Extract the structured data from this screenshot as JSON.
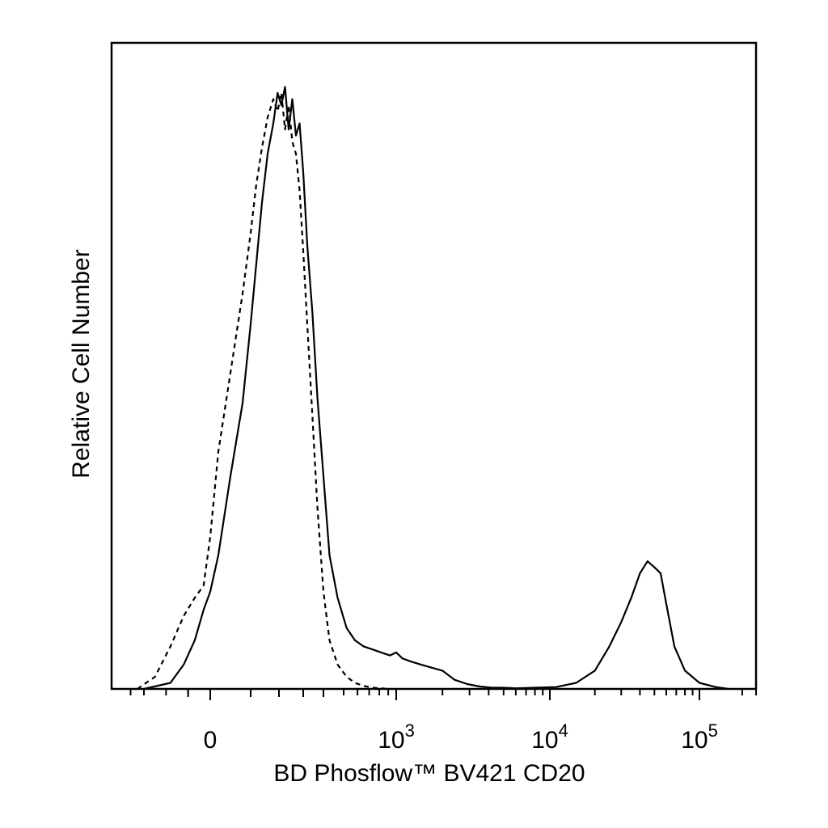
{
  "chart_data": {
    "type": "line",
    "title": "",
    "xlabel": "BD Phosflow™ BV421 CD20",
    "ylabel": "Relative Cell Number",
    "x_scale": "biexponential",
    "x_ticks": [
      {
        "value": 0,
        "base": "0",
        "exp": ""
      },
      {
        "value": 1000,
        "base": "10",
        "exp": "3"
      },
      {
        "value": 10000,
        "base": "10",
        "exp": "4"
      },
      {
        "value": 100000,
        "base": "10",
        "exp": "5"
      }
    ],
    "xlim": [
      -500,
      250000
    ],
    "ylim": [
      0,
      100
    ],
    "grid": false,
    "legend": "none",
    "series": [
      {
        "style": "solid",
        "color": "#000000",
        "x": [
          -300,
          -180,
          -120,
          -70,
          -30,
          0,
          20,
          50,
          80,
          100,
          120,
          140,
          160,
          180,
          195,
          210,
          225,
          240,
          255,
          270,
          285,
          300,
          320,
          345,
          370,
          400,
          430,
          470,
          520,
          580,
          650,
          730,
          820,
          920,
          1000,
          1100,
          1250,
          1450,
          1700,
          2000,
          2400,
          2900,
          3500,
          4200,
          5000,
          6000,
          8000,
          11000,
          15000,
          20000,
          25000,
          30000,
          35000,
          40000,
          45000,
          50000,
          55000,
          60000,
          68000,
          80000,
          100000,
          130000,
          160000
        ],
        "y": [
          0,
          1,
          4,
          8,
          13,
          16,
          22,
          35,
          47,
          60,
          70,
          80,
          88,
          93,
          98,
          96,
          99,
          92,
          97,
          91,
          93,
          85,
          73,
          62,
          48,
          35,
          22,
          15,
          10,
          8,
          7,
          6.5,
          6,
          5.5,
          6,
          5,
          4.5,
          4,
          3.5,
          3,
          1.5,
          0.8,
          0.4,
          0.2,
          0.2,
          0.1,
          0.2,
          0.3,
          1,
          3,
          7,
          11,
          15,
          19,
          21,
          20,
          19,
          14,
          7,
          3,
          1,
          0.3,
          0
        ]
      },
      {
        "style": "dashed",
        "color": "#000000",
        "x": [
          -350,
          -250,
          -180,
          -120,
          -70,
          -30,
          0,
          20,
          50,
          80,
          100,
          120,
          140,
          160,
          180,
          195,
          210,
          225,
          240,
          255,
          270,
          285,
          300,
          320,
          345,
          370,
          400,
          430,
          470,
          520,
          580,
          650,
          730,
          820,
          900
        ],
        "y": [
          0,
          2,
          7,
          12,
          15,
          17,
          25,
          39,
          52,
          65,
          75,
          83,
          89,
          94,
          97,
          95,
          98,
          92,
          96,
          90,
          88,
          82,
          72,
          60,
          45,
          30,
          16,
          8,
          4,
          2,
          1,
          0.5,
          0.2,
          0.1,
          0
        ]
      }
    ]
  }
}
